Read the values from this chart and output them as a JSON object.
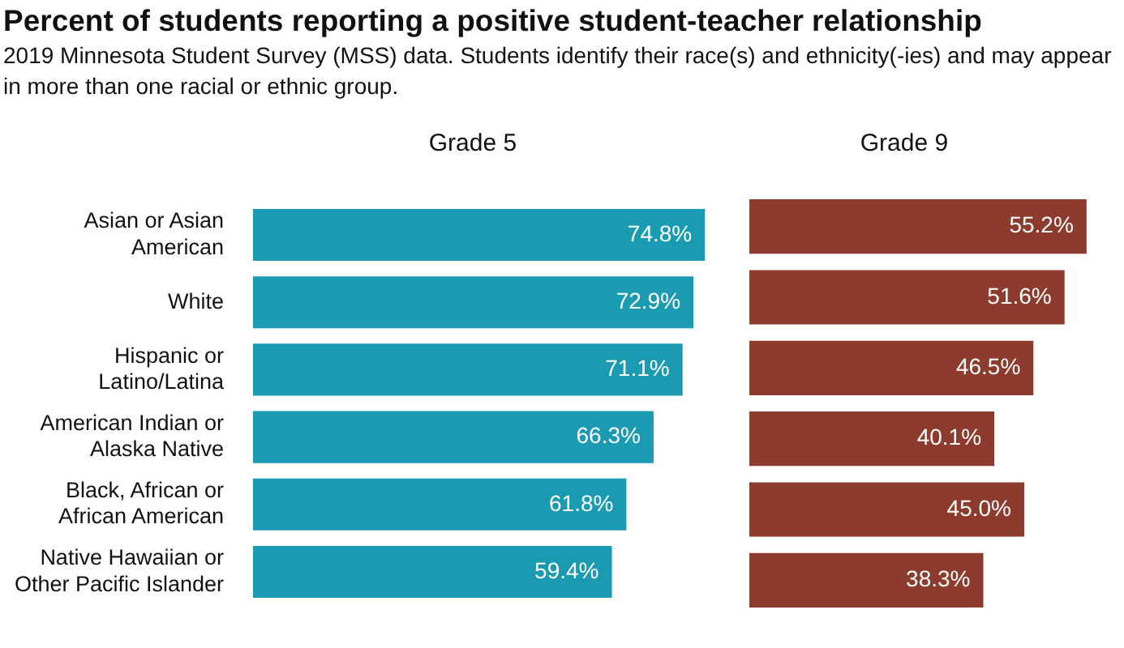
{
  "chart_data": [
    {
      "type": "bar",
      "orientation": "horizontal",
      "title": "Grade 5",
      "annotations": [
        "Percent of students reporting a positive student-teacher relationship",
        "2019 Minnesota Student Survey (MSS) data. Students identify their race(s) and ethnicity(-ies) and may appear in more than one racial or ethnic group."
      ],
      "categories": [
        "Asian or Asian American",
        "White",
        "Hispanic or Latino/Latina",
        "American Indian or Alaska Native",
        "Black, African or African American",
        "Native Hawaiian or Other Pacific Islander"
      ],
      "values": [
        74.8,
        72.9,
        71.1,
        66.3,
        61.8,
        59.4
      ],
      "value_labels": [
        "74.8%",
        "72.9%",
        "71.1%",
        "66.3%",
        "61.8%",
        "59.4%"
      ],
      "color": "#1a9bb2",
      "tick_labels": "y"
    },
    {
      "type": "bar",
      "orientation": "horizontal",
      "title": "Grade 9",
      "categories": [
        null,
        null,
        null,
        null,
        null,
        null
      ],
      "values": [
        55.2,
        51.6,
        46.5,
        40.1,
        45.0,
        38.3
      ],
      "value_labels": [
        "55.2%",
        "51.6%",
        "46.5%",
        "40.1%",
        "45.0%",
        "38.3%"
      ],
      "color": "#8c3b2c",
      "tick_labels": false
    }
  ]
}
